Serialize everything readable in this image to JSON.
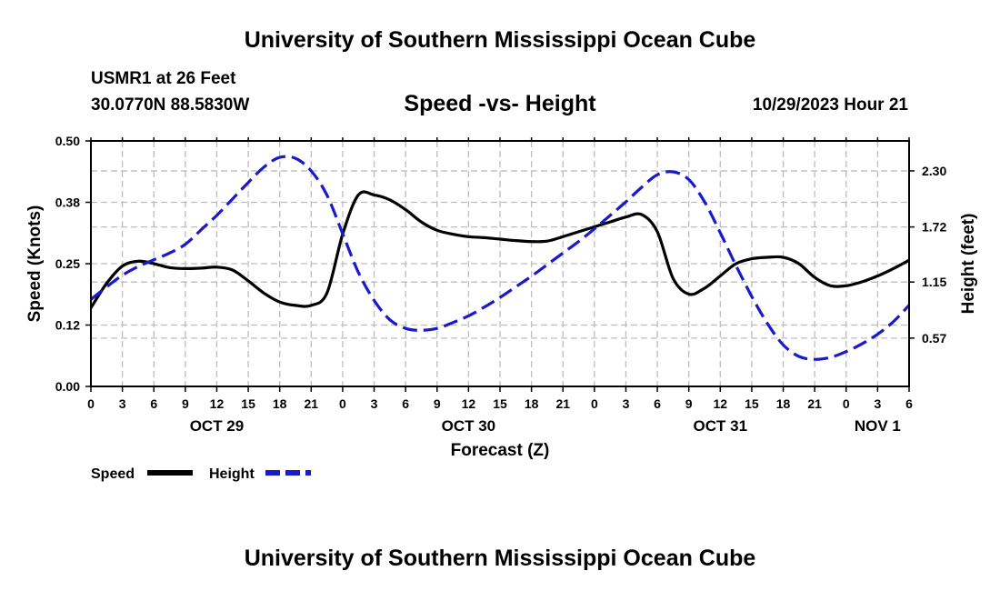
{
  "header": {
    "title": "University of Southern Mississippi Ocean Cube",
    "station": "USMR1 at 26 Feet",
    "coordinates": "30.0770N  88.5830W",
    "datetime": "10/29/2023 Hour 21",
    "footer_title": "University of Southern Mississippi Ocean Cube"
  },
  "chart_data": {
    "type": "line",
    "title": "Speed -vs- Height",
    "xlabel": "Forecast (Z)",
    "ylabel": "Speed (Knots)",
    "y2label": "Height (feet)",
    "xlim": [
      0,
      78
    ],
    "ylim": [
      0,
      0.5
    ],
    "y2lim": [
      0.07,
      2.61
    ],
    "x_ticks": [
      0,
      3,
      6,
      9,
      12,
      15,
      18,
      21,
      24,
      27,
      30,
      33,
      36,
      39,
      42,
      45,
      48,
      51,
      54,
      57,
      60,
      63,
      66,
      69,
      72,
      75,
      78
    ],
    "x_tick_labels": [
      "0",
      "3",
      "6",
      "9",
      "12",
      "15",
      "18",
      "21",
      "0",
      "3",
      "6",
      "9",
      "12",
      "15",
      "18",
      "21",
      "0",
      "3",
      "6",
      "9",
      "12",
      "15",
      "18",
      "21",
      "0",
      "3",
      "6"
    ],
    "y_ticks": [
      0,
      0.125,
      0.25,
      0.375,
      0.5
    ],
    "y_tick_labels": [
      "0.00",
      "0.12",
      "0.25",
      "0.38",
      "0.50"
    ],
    "y2_ticks": [
      0.57,
      1.15,
      1.72,
      2.3
    ],
    "y2_tick_labels": [
      "0.57",
      "1.15",
      "1.72",
      "2.30"
    ],
    "day_labels": [
      {
        "label": "OCT 29",
        "hour": 12
      },
      {
        "label": "OCT 30",
        "hour": 36
      },
      {
        "label": "OCT 31",
        "hour": 60
      },
      {
        "label": "NOV 1",
        "hour": 75
      }
    ],
    "grid": true,
    "legend": "bottom-left",
    "series": [
      {
        "name": "Speed",
        "axis": "left",
        "color": "#000000",
        "style": "solid",
        "x": [
          0,
          1.5,
          3,
          4.5,
          6,
          7.5,
          9,
          10.5,
          12,
          13.5,
          15,
          16.5,
          18,
          19.5,
          21,
          22.5,
          24,
          25.5,
          27,
          28.5,
          30,
          31.5,
          33,
          34.5,
          36,
          37.5,
          39,
          40.5,
          42,
          43.5,
          45,
          46.5,
          48,
          49.5,
          51,
          52.5,
          54,
          55.5,
          57,
          58.5,
          60,
          61.5,
          63,
          64.5,
          66,
          67.5,
          69,
          70.5,
          72,
          73.5,
          75,
          76.5,
          78
        ],
        "values": [
          0.16,
          0.21,
          0.245,
          0.255,
          0.25,
          0.242,
          0.24,
          0.241,
          0.243,
          0.237,
          0.215,
          0.19,
          0.172,
          0.165,
          0.165,
          0.19,
          0.31,
          0.39,
          0.39,
          0.38,
          0.36,
          0.335,
          0.318,
          0.31,
          0.305,
          0.303,
          0.3,
          0.297,
          0.295,
          0.296,
          0.305,
          0.315,
          0.325,
          0.335,
          0.345,
          0.35,
          0.315,
          0.22,
          0.188,
          0.2,
          0.225,
          0.25,
          0.26,
          0.263,
          0.263,
          0.25,
          0.222,
          0.205,
          0.205,
          0.213,
          0.225,
          0.24,
          0.257
        ]
      },
      {
        "name": "Height",
        "axis": "right",
        "color": "#1a1acd",
        "style": "dashed",
        "x": [
          0,
          1.5,
          3,
          4.5,
          6,
          7.5,
          9,
          10.5,
          12,
          13.5,
          15,
          16.5,
          18,
          19.5,
          21,
          22.5,
          24,
          25.5,
          27,
          28.5,
          30,
          31.5,
          33,
          34.5,
          36,
          37.5,
          39,
          40.5,
          42,
          43.5,
          45,
          46.5,
          48,
          49.5,
          51,
          52.5,
          54,
          55.5,
          57,
          58.5,
          60,
          61.5,
          63,
          64.5,
          66,
          67.5,
          69,
          70.5,
          72,
          73.5,
          75,
          76.5,
          78
        ],
        "values": [
          0.97,
          1.1,
          1.22,
          1.31,
          1.38,
          1.45,
          1.54,
          1.69,
          1.84,
          2.01,
          2.18,
          2.34,
          2.44,
          2.43,
          2.3,
          2.05,
          1.65,
          1.25,
          0.96,
          0.76,
          0.67,
          0.65,
          0.67,
          0.73,
          0.8,
          0.89,
          0.99,
          1.1,
          1.21,
          1.33,
          1.45,
          1.57,
          1.7,
          1.84,
          1.98,
          2.13,
          2.26,
          2.29,
          2.21,
          1.98,
          1.66,
          1.32,
          1.0,
          0.72,
          0.5,
          0.38,
          0.35,
          0.37,
          0.43,
          0.51,
          0.61,
          0.74,
          0.91
        ]
      }
    ]
  }
}
